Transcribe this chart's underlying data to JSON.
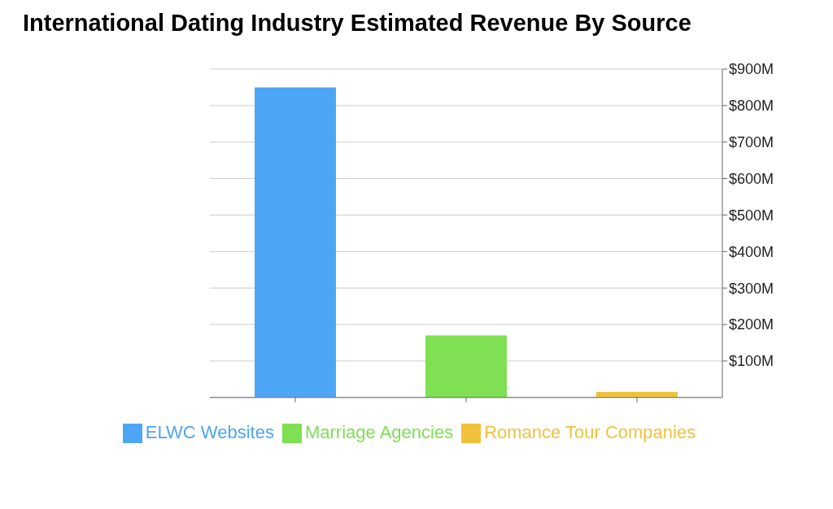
{
  "chart_data": {
    "type": "bar",
    "title": "International Dating Industry Estimated Revenue By Source",
    "categories": [
      null,
      null,
      null
    ],
    "series": [
      {
        "name": "ELWC Websites",
        "color": "#4da6f5",
        "values": [
          850,
          null,
          null
        ]
      },
      {
        "name": "Marriage Agencies",
        "color": "#7ee052",
        "values": [
          null,
          170,
          null
        ]
      },
      {
        "name": "Romance Tour Companies",
        "color": "#f0c23c",
        "values": [
          null,
          null,
          15
        ]
      }
    ],
    "ylim": [
      0,
      900
    ],
    "yticks": [
      {
        "value": 100,
        "label": "$100M"
      },
      {
        "value": 200,
        "label": "$200M"
      },
      {
        "value": 300,
        "label": "$300M"
      },
      {
        "value": 400,
        "label": "$400M"
      },
      {
        "value": 500,
        "label": "$500M"
      },
      {
        "value": 600,
        "label": "$600M"
      },
      {
        "value": 700,
        "label": "$700M"
      },
      {
        "value": 800,
        "label": "$800M"
      },
      {
        "value": 900,
        "label": "$900M"
      }
    ],
    "grid": "y",
    "legend": "bottom"
  }
}
